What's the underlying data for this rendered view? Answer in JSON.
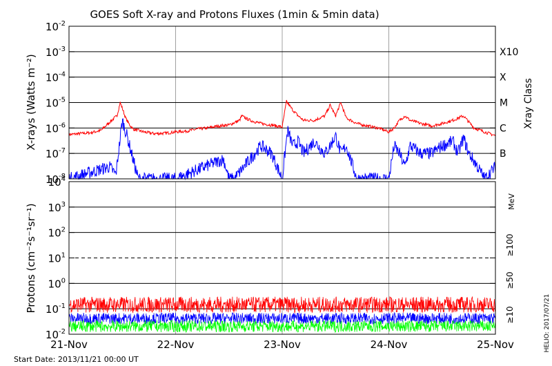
{
  "title": "GOES Soft X-ray and Protons Fluxes   (1min & 5min data)",
  "footer": {
    "start_date": "Start Date: 2013/11/21 00:00 UT",
    "credit": "HELIO: 2017/07/21"
  },
  "colors": {
    "xray_long": "#ff0000",
    "xray_short": "#0000ff",
    "p10": "#ff0000",
    "p50": "#0000ff",
    "p100": "#00ff00",
    "grid": "#000000",
    "day_lines": "#a0a0a0"
  },
  "chart_data": [
    {
      "type": "line",
      "ylabel": "X-rays (Watts m⁻²)",
      "y_scale": "log",
      "ylim": [
        1e-08,
        0.01
      ],
      "xlim": [
        "21-Nov",
        "25-Nov"
      ],
      "x_ticks": [
        "21-Nov",
        "22-Nov",
        "23-Nov",
        "24-Nov",
        "25-Nov"
      ],
      "y_ticks": [
        {
          "base": "10",
          "exp": "-8"
        },
        {
          "base": "10",
          "exp": "-7"
        },
        {
          "base": "10",
          "exp": "-6"
        },
        {
          "base": "10",
          "exp": "-5"
        },
        {
          "base": "10",
          "exp": "-4"
        },
        {
          "base": "10",
          "exp": "-3"
        },
        {
          "base": "10",
          "exp": "-2"
        }
      ],
      "right_axis_label": "Xray Class",
      "classes": [
        {
          "label": "B",
          "value": 1e-07
        },
        {
          "label": "C",
          "value": 1e-06
        },
        {
          "label": "M",
          "value": 1e-05
        },
        {
          "label": "X",
          "value": 0.0001
        },
        {
          "label": "X10",
          "value": 0.001
        }
      ],
      "grid": "horizontal at each decade from 1e-7 to 1e-3",
      "series": [
        {
          "color": "red",
          "x": [
            0,
            0.1,
            0.2,
            0.3,
            0.4,
            0.45,
            0.48,
            0.5,
            0.53,
            0.56,
            0.6,
            0.65,
            0.7,
            0.75,
            0.8,
            0.9,
            1.0,
            1.1,
            1.2,
            1.3,
            1.4,
            1.5,
            1.6,
            1.62,
            1.65,
            1.7,
            1.8,
            1.9,
            2.0,
            2.04,
            2.1,
            2.15,
            2.2,
            2.3,
            2.4,
            2.45,
            2.5,
            2.55,
            2.6,
            2.7,
            2.8,
            2.9,
            3.0,
            3.05,
            3.1,
            3.15,
            3.2,
            3.3,
            3.4,
            3.5,
            3.6,
            3.7,
            3.8,
            3.9,
            4.0
          ],
          "y": [
            5.5e-07,
            6e-07,
            6.5e-07,
            8e-07,
            2e-06,
            3e-06,
            1e-05,
            6e-06,
            2.5e-06,
            1.5e-06,
            9e-07,
            8e-07,
            7e-07,
            6.5e-07,
            6e-07,
            6.2e-07,
            7e-07,
            7.5e-07,
            9e-07,
            1e-06,
            1.2e-06,
            1.3e-06,
            2e-06,
            3e-06,
            2.5e-06,
            2e-06,
            1.5e-06,
            1.3e-06,
            1.1e-06,
            1.1e-05,
            5e-06,
            3e-06,
            2e-06,
            2e-06,
            3e-06,
            8e-06,
            3e-06,
            1e-05,
            2.5e-06,
            1.5e-06,
            1.2e-06,
            1e-06,
            7e-07,
            1e-06,
            2e-06,
            3e-06,
            2e-06,
            1.5e-06,
            1.2e-06,
            1.5e-06,
            2e-06,
            3e-06,
            1e-06,
            7e-07,
            5e-07
          ]
        },
        {
          "color": "blue",
          "x": [
            0,
            0.38,
            0.44,
            0.5,
            0.55,
            0.6,
            0.65,
            1.0,
            1.45,
            1.5,
            1.55,
            1.8,
            1.9,
            2.0,
            2.05,
            2.1,
            2.15,
            2.2,
            2.3,
            2.4,
            2.45,
            2.5,
            2.55,
            2.6,
            2.7,
            2.8,
            3.0,
            3.05,
            3.1,
            3.15,
            3.2,
            3.3,
            3.4,
            3.5,
            3.6,
            3.65,
            3.7,
            3.75,
            3.8,
            3.9,
            4.0
          ],
          "y": [
            1e-08,
            3e-08,
            1.5e-08,
            2e-06,
            4e-07,
            6e-08,
            1e-08,
            1e-08,
            6e-08,
            1e-08,
            1e-08,
            2e-07,
            1e-07,
            1e-08,
            8e-07,
            2e-07,
            3e-07,
            1e-07,
            3e-07,
            1e-07,
            2e-07,
            5e-07,
            1e-07,
            2e-07,
            1e-08,
            1e-08,
            1e-08,
            2e-07,
            1e-07,
            3e-08,
            2e-07,
            1e-07,
            1e-07,
            2e-07,
            3e-07,
            1e-07,
            4e-07,
            1e-07,
            5e-08,
            1e-08,
            3e-08
          ]
        }
      ]
    },
    {
      "type": "line",
      "ylabel": "Protons (cm⁻²s⁻¹sr⁻¹)",
      "y_scale": "log",
      "ylim": [
        0.01,
        10000
      ],
      "xlim": [
        "21-Nov",
        "25-Nov"
      ],
      "x_ticks": [
        "21-Nov",
        "22-Nov",
        "23-Nov",
        "24-Nov",
        "25-Nov"
      ],
      "y_ticks": [
        {
          "base": "10",
          "exp": "-2"
        },
        {
          "base": "10",
          "exp": "-1"
        },
        {
          "base": "10",
          "exp": "0"
        },
        {
          "base": "10",
          "exp": "1"
        },
        {
          "base": "10",
          "exp": "2"
        },
        {
          "base": "10",
          "exp": "3"
        },
        {
          "base": "10",
          "exp": "4"
        }
      ],
      "dashed_threshold": 10,
      "right_axis_label": "MeV",
      "series": [
        {
          "name": "≥10",
          "color": "red",
          "level_min": 0.07,
          "level_max": 0.3
        },
        {
          "name": "≥50",
          "color": "blue",
          "level_min": 0.025,
          "level_max": 0.07
        },
        {
          "name": "≥100",
          "color": "green",
          "level_min": 0.012,
          "level_max": 0.035
        }
      ]
    }
  ]
}
